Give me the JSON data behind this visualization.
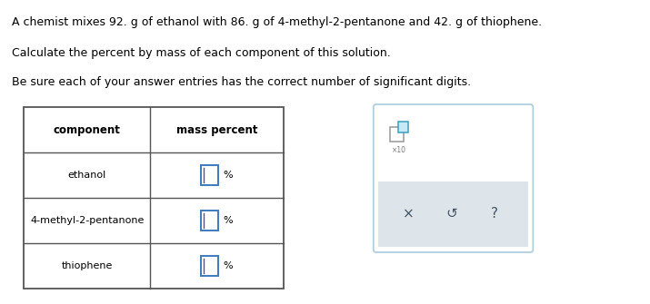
{
  "title_line1": "A chemist mixes 92. g of ethanol with 86. g of 4-methyl-2-pentanone and 42. g of thiophene.",
  "title_line2": "Calculate the percent by mass of each component of this solution.",
  "title_line3": "Be sure each of your answer entries has the correct number of significant digits.",
  "col1_header": "component",
  "col2_header": "mass percent",
  "rows": [
    "ethanol",
    "4-methyl-2-pentanone",
    "thiophene"
  ],
  "percent_symbol": "%",
  "bg_color": "#ffffff",
  "table_border_color": "#555555",
  "header_font_size": 8.5,
  "row_font_size": 8.0,
  "text_color": "#000000",
  "input_box_color": "#ffffff",
  "input_box_border_active": "#3a7cbf",
  "input_box_border_inactive": "#3a7cbf",
  "popup_border": "#aaccdd",
  "popup_bg_top": "#ffffff",
  "popup_bg_bottom": "#dde8ee",
  "icon_box_border": "#888888",
  "icon_exp_border": "#3a9fbf",
  "icon_exp_fill": "#c8e8f5",
  "btn_color": "#445566"
}
